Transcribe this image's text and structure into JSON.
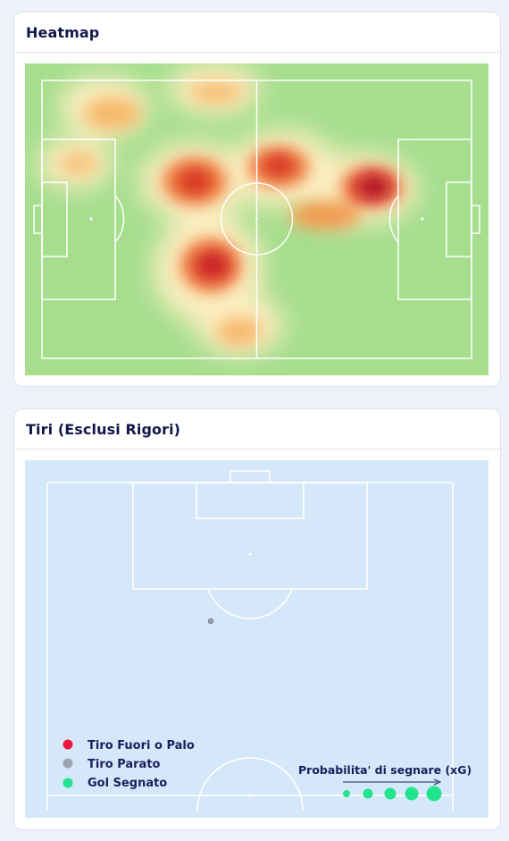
{
  "heatmap_card": {
    "title": "Heatmap"
  },
  "shots_card": {
    "title": "Tiri (Esclusi Rigori)",
    "legend": {
      "items": [
        {
          "label": "Tiro Fuori o Palo",
          "color": "#f0173f"
        },
        {
          "label": "Tiro Parato",
          "color": "#9ea3b0"
        },
        {
          "label": "Gol Segnato",
          "color": "#22e48c"
        }
      ],
      "xg_label": "Probabilita' di segnare (xG)"
    },
    "shots": [
      {
        "outcome": "Tiro Parato",
        "color": "#9ea3b0"
      }
    ]
  },
  "colors": {
    "pitch_green": "#a6de8e",
    "pitch_blue": "#d5e8f9",
    "title": "#13174a",
    "legend_text": "#1a1f5c"
  }
}
